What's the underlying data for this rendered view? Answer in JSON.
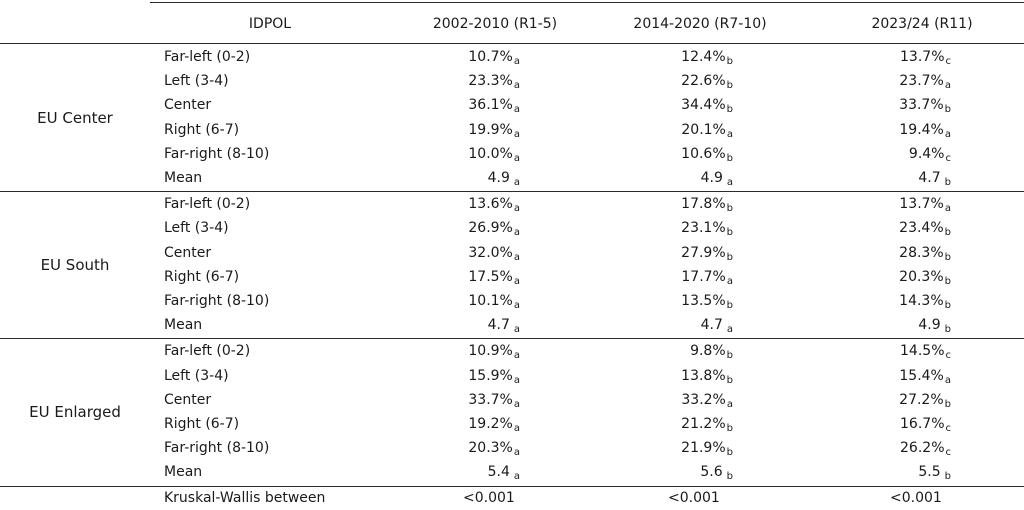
{
  "table": {
    "headers": [
      "IDPOL",
      "2002-2010 (R1-5)",
      "2014-2020 (R7-10)",
      "2023/24 (R11)"
    ],
    "groups": [
      {
        "name": "EU Center",
        "rows": [
          {
            "label": "Far-left (0-2)",
            "cells": [
              [
                "10.7%",
                "a"
              ],
              [
                "12.4%",
                "b"
              ],
              [
                "13.7%",
                "c"
              ]
            ]
          },
          {
            "label": "Left (3-4)",
            "cells": [
              [
                "23.3%",
                "a"
              ],
              [
                "22.6%",
                "b"
              ],
              [
                "23.7%",
                "a"
              ]
            ]
          },
          {
            "label": "Center",
            "cells": [
              [
                "36.1%",
                "a"
              ],
              [
                "34.4%",
                "b"
              ],
              [
                "33.7%",
                "b"
              ]
            ]
          },
          {
            "label": "Right (6-7)",
            "cells": [
              [
                "19.9%",
                "a"
              ],
              [
                "20.1%",
                "a"
              ],
              [
                "19.4%",
                "a"
              ]
            ]
          },
          {
            "label": "Far-right (8-10)",
            "cells": [
              [
                "10.0%",
                "a"
              ],
              [
                "10.6%",
                "b"
              ],
              [
                "9.4%",
                "c"
              ]
            ]
          },
          {
            "label": "Mean",
            "cells": [
              [
                "4.9 ",
                "a"
              ],
              [
                "4.9 ",
                "a"
              ],
              [
                "4.7 ",
                "b"
              ]
            ]
          }
        ]
      },
      {
        "name": "EU South",
        "rows": [
          {
            "label": "Far-left (0-2)",
            "cells": [
              [
                "13.6%",
                "a"
              ],
              [
                "17.8%",
                "b"
              ],
              [
                "13.7%",
                "a"
              ]
            ]
          },
          {
            "label": "Left (3-4)",
            "cells": [
              [
                "26.9%",
                "a"
              ],
              [
                "23.1%",
                "b"
              ],
              [
                "23.4%",
                "b"
              ]
            ]
          },
          {
            "label": "Center",
            "cells": [
              [
                "32.0%",
                "a"
              ],
              [
                "27.9%",
                "b"
              ],
              [
                "28.3%",
                "b"
              ]
            ]
          },
          {
            "label": "Right (6-7)",
            "cells": [
              [
                "17.5%",
                "a"
              ],
              [
                "17.7%",
                "a"
              ],
              [
                "20.3%",
                "b"
              ]
            ]
          },
          {
            "label": "Far-right (8-10)",
            "cells": [
              [
                "10.1%",
                "a"
              ],
              [
                "13.5%",
                "b"
              ],
              [
                "14.3%",
                "b"
              ]
            ]
          },
          {
            "label": "Mean",
            "cells": [
              [
                "4.7 ",
                "a"
              ],
              [
                "4.7 ",
                "a"
              ],
              [
                "4.9 ",
                "b"
              ]
            ]
          }
        ]
      },
      {
        "name": "EU Enlarged",
        "rows": [
          {
            "label": "Far-left (0-2)",
            "cells": [
              [
                "10.9%",
                "a"
              ],
              [
                "9.8%",
                "b"
              ],
              [
                "14.5%",
                "c"
              ]
            ]
          },
          {
            "label": "Left (3-4)",
            "cells": [
              [
                "15.9%",
                "a"
              ],
              [
                "13.8%",
                "b"
              ],
              [
                "15.4%",
                "a"
              ]
            ]
          },
          {
            "label": "Center",
            "cells": [
              [
                "33.7%",
                "a"
              ],
              [
                "33.2%",
                "a"
              ],
              [
                "27.2%",
                "b"
              ]
            ]
          },
          {
            "label": "Right (6-7)",
            "cells": [
              [
                "19.2%",
                "a"
              ],
              [
                "21.2%",
                "b"
              ],
              [
                "16.7%",
                "c"
              ]
            ]
          },
          {
            "label": "Far-right (8-10)",
            "cells": [
              [
                "20.3%",
                "a"
              ],
              [
                "21.9%",
                "b"
              ],
              [
                "26.2%",
                "c"
              ]
            ]
          },
          {
            "label": "Mean",
            "cells": [
              [
                "5.4 ",
                "a"
              ],
              [
                "5.6 ",
                "b"
              ],
              [
                "5.5 ",
                "b"
              ]
            ]
          }
        ]
      }
    ],
    "footer": {
      "label": "Kruskal-Wallis between",
      "cells": [
        "<0.001",
        "<0.001",
        "<0.001"
      ]
    }
  }
}
